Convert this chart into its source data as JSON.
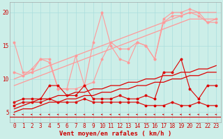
{
  "title": "",
  "xlabel": "Vent moyen/en rafales ( km/h )",
  "bg_color": "#cceee8",
  "grid_color": "#aadddd",
  "x": [
    0,
    1,
    2,
    3,
    4,
    5,
    6,
    7,
    8,
    9,
    10,
    11,
    12,
    13,
    14,
    15,
    16,
    17,
    18,
    19,
    20,
    21,
    22,
    23
  ],
  "line1": [
    15.5,
    11.0,
    11.0,
    13.0,
    13.0,
    8.5,
    8.5,
    13.5,
    9.0,
    15.5,
    20.0,
    15.0,
    13.0,
    12.5,
    15.5,
    15.0,
    13.0,
    19.0,
    20.0,
    20.0,
    20.5,
    20.0,
    18.5,
    19.0
  ],
  "line2": [
    11.0,
    10.5,
    11.5,
    13.0,
    12.5,
    8.5,
    8.5,
    8.5,
    9.0,
    9.5,
    13.0,
    15.5,
    14.5,
    14.5,
    15.5,
    15.0,
    13.0,
    18.5,
    19.5,
    19.5,
    20.0,
    19.5,
    18.5,
    18.5
  ],
  "line3_trend": [
    10.0,
    10.5,
    11.0,
    11.5,
    12.0,
    12.5,
    13.0,
    13.5,
    14.0,
    14.5,
    15.0,
    15.5,
    16.0,
    16.5,
    17.0,
    17.5,
    18.0,
    18.5,
    19.0,
    19.5,
    20.0,
    20.0,
    20.0,
    20.0
  ],
  "line4_trend": [
    9.0,
    9.5,
    10.0,
    10.5,
    11.0,
    11.5,
    12.0,
    12.5,
    13.0,
    13.5,
    14.0,
    14.5,
    15.0,
    15.5,
    16.0,
    16.5,
    17.0,
    17.5,
    18.0,
    18.5,
    19.0,
    19.0,
    19.0,
    19.0
  ],
  "line5": [
    6.5,
    7.0,
    7.0,
    7.0,
    9.0,
    9.0,
    7.5,
    7.5,
    9.0,
    7.0,
    7.0,
    7.0,
    7.5,
    7.0,
    7.0,
    7.5,
    7.0,
    11.0,
    11.0,
    13.0,
    8.5,
    7.0,
    9.0,
    9.0
  ],
  "line6": [
    6.0,
    6.5,
    6.5,
    6.5,
    7.0,
    6.5,
    6.5,
    6.5,
    7.0,
    6.5,
    6.5,
    6.5,
    6.5,
    6.5,
    6.5,
    6.0,
    6.0,
    6.0,
    6.5,
    6.0,
    6.0,
    6.5,
    6.0,
    6.0
  ],
  "line7_trend": [
    5.5,
    6.0,
    6.5,
    7.0,
    7.0,
    7.5,
    7.5,
    8.0,
    8.0,
    8.5,
    8.5,
    9.0,
    9.0,
    9.5,
    9.5,
    10.0,
    10.0,
    10.5,
    10.5,
    11.0,
    11.0,
    11.5,
    11.5,
    12.0
  ],
  "line8_trend": [
    5.0,
    5.5,
    5.5,
    6.0,
    6.5,
    6.5,
    7.0,
    7.0,
    7.5,
    7.5,
    8.0,
    8.0,
    8.5,
    8.5,
    9.0,
    9.0,
    9.5,
    9.5,
    10.0,
    10.0,
    10.5,
    10.5,
    11.0,
    11.0
  ],
  "ylim": [
    3.5,
    21.5
  ],
  "xlim": [
    -0.5,
    23.5
  ],
  "light_pink": "#ff9999",
  "dark_red": "#dd0000",
  "axis_red": "#cc0000",
  "tick_fontsize": 5.5,
  "label_fontsize": 6.5
}
